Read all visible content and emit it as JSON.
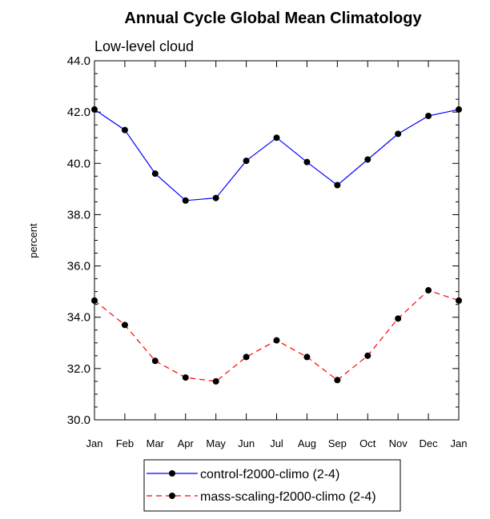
{
  "chart_data": {
    "type": "line",
    "title": "Annual Cycle Global Mean Climatology",
    "subtitle": "Low-level cloud",
    "xlabel": "",
    "ylabel": "percent",
    "categories": [
      "Jan",
      "Feb",
      "Mar",
      "Apr",
      "May",
      "Jun",
      "Jul",
      "Aug",
      "Sep",
      "Oct",
      "Nov",
      "Dec",
      "Jan"
    ],
    "ylim": [
      30.0,
      44.0
    ],
    "yticks": [
      "30.0",
      "32.0",
      "34.0",
      "36.0",
      "38.0",
      "40.0",
      "42.0",
      "44.0"
    ],
    "ytick_values": [
      30,
      32,
      34,
      36,
      38,
      40,
      42,
      44
    ],
    "legend_position": "bottom-center",
    "series": [
      {
        "name": "control-f2000-climo (2-4)",
        "color": "#0000ff",
        "dash": "solid",
        "values": [
          42.1,
          41.3,
          39.6,
          38.55,
          38.65,
          40.1,
          41.0,
          40.05,
          39.15,
          40.15,
          41.15,
          41.85,
          42.1
        ]
      },
      {
        "name": "mass-scaling-f2000-climo (2-4)",
        "color": "#ff0000",
        "dash": "dashed",
        "values": [
          34.65,
          33.7,
          32.3,
          31.65,
          31.5,
          32.45,
          33.1,
          32.45,
          31.55,
          32.5,
          33.95,
          35.05,
          34.65
        ]
      }
    ]
  }
}
